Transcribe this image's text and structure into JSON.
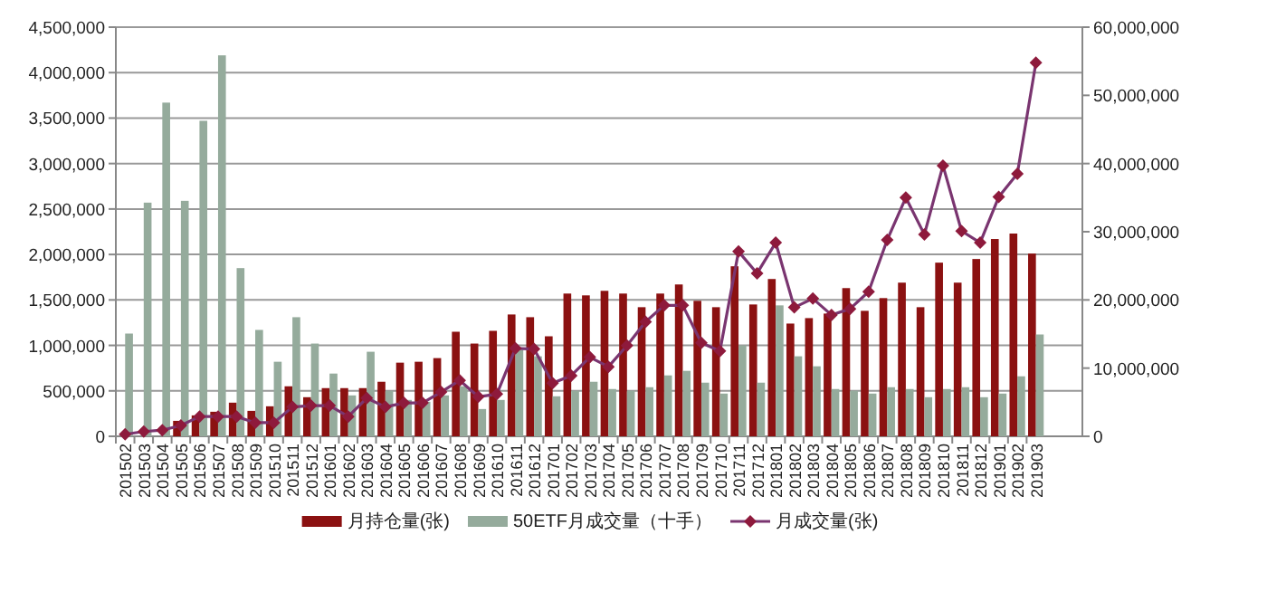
{
  "chart_data": {
    "type": "bar",
    "categories": [
      "201502",
      "201503",
      "201504",
      "201505",
      "201506",
      "201507",
      "201508",
      "201509",
      "201510",
      "201511",
      "201512",
      "201601",
      "201602",
      "201603",
      "201604",
      "201605",
      "201606",
      "201607",
      "201608",
      "201609",
      "201610",
      "201611",
      "201612",
      "201701",
      "201702",
      "201703",
      "201704",
      "201705",
      "201706",
      "201707",
      "201708",
      "201709",
      "201710",
      "201711",
      "201712",
      "201801",
      "201802",
      "201803",
      "201804",
      "201805",
      "201806",
      "201807",
      "201808",
      "201809",
      "201810",
      "201811",
      "201812",
      "201901",
      "201902",
      "201903"
    ],
    "series": [
      {
        "name": "月持仓量(张)",
        "color": "#8b1111",
        "values": [
          null,
          null,
          null,
          170000,
          230000,
          270000,
          370000,
          280000,
          330000,
          550000,
          430000,
          530000,
          530000,
          530000,
          600000,
          810000,
          820000,
          860000,
          1150000,
          1020000,
          1160000,
          1340000,
          1310000,
          1100000,
          1570000,
          1550000,
          1600000,
          1570000,
          1420000,
          1570000,
          1670000,
          1490000,
          1420000,
          1870000,
          1450000,
          1730000,
          1240000,
          1300000,
          1350000,
          1630000,
          1380000,
          1520000,
          1690000,
          1420000,
          1910000,
          1690000,
          1950000,
          2170000,
          2230000,
          2010000
        ]
      },
      {
        "name": "50ETF月成交量（十手）",
        "color": "#95ab9c",
        "values": [
          1130000,
          2570000,
          3670000,
          2590000,
          3470000,
          4190000,
          1850000,
          1170000,
          820000,
          1310000,
          1020000,
          690000,
          450000,
          930000,
          500000,
          400000,
          380000,
          450000,
          550000,
          300000,
          400000,
          950000,
          880000,
          440000,
          500000,
          600000,
          520000,
          500000,
          540000,
          670000,
          720000,
          590000,
          470000,
          1000000,
          590000,
          1440000,
          880000,
          770000,
          520000,
          500000,
          470000,
          540000,
          520000,
          430000,
          520000,
          540000,
          430000,
          470000,
          660000,
          1120000
        ]
      },
      {
        "name": "月成交量(张)",
        "type": "line",
        "axis": "y2",
        "color": "#7a3570",
        "marker": "diamond",
        "values": [
          300000,
          700000,
          900000,
          1600000,
          2900000,
          2900000,
          2900000,
          2000000,
          2000000,
          4300000,
          4500000,
          4500000,
          2900000,
          5600000,
          4300000,
          4900000,
          4900000,
          6500000,
          8200000,
          5800000,
          6200000,
          12900000,
          12800000,
          7800000,
          8900000,
          11600000,
          10200000,
          13300000,
          16800000,
          19200000,
          19200000,
          13700000,
          12500000,
          27100000,
          23900000,
          28400000,
          18900000,
          20200000,
          17800000,
          18700000,
          21200000,
          28800000,
          35000000,
          29600000,
          39700000,
          30100000,
          28400000,
          35100000,
          38500000,
          54800000
        ]
      }
    ],
    "ylim": [
      0,
      4500000
    ],
    "yticks": [
      {
        "value": 0,
        "label": "0"
      },
      {
        "value": 500000,
        "label": "500,000"
      },
      {
        "value": 1000000,
        "label": "1,000,000"
      },
      {
        "value": 1500000,
        "label": "1,500,000"
      },
      {
        "value": 2000000,
        "label": "2,000,000"
      },
      {
        "value": 2500000,
        "label": "2,500,000"
      },
      {
        "value": 3000000,
        "label": "3,000,000"
      },
      {
        "value": 3500000,
        "label": "3,500,000"
      },
      {
        "value": 4000000,
        "label": "4,000,000"
      },
      {
        "value": 4500000,
        "label": "4,500,000"
      }
    ],
    "y2lim": [
      0,
      60000000
    ],
    "y2ticks": [
      {
        "value": 0,
        "label": "0"
      },
      {
        "value": 10000000,
        "label": "10,000,000"
      },
      {
        "value": 20000000,
        "label": "20,000,000"
      },
      {
        "value": 30000000,
        "label": "30,000,000"
      },
      {
        "value": 40000000,
        "label": "40,000,000"
      },
      {
        "value": 50000000,
        "label": "50,000,000"
      },
      {
        "value": 60000000,
        "label": "60,000,000"
      }
    ],
    "grid": "y",
    "legend": "bottom"
  }
}
